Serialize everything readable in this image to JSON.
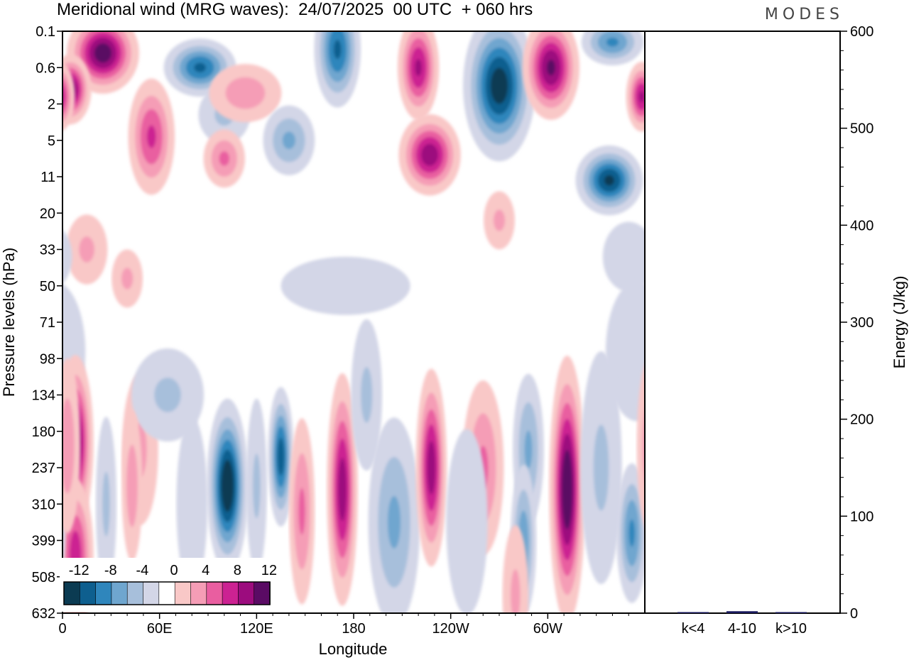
{
  "header": {
    "title": "Meridional wind (MRG waves):  24/07/2025  00 UTC  + 060 hrs",
    "logo": "MODES"
  },
  "colors": {
    "neg": [
      "#0b3b52",
      "#0e5f8f",
      "#2f86bc",
      "#6fa6cf",
      "#a7bfdb",
      "#d3d6e7"
    ],
    "pos": [
      "#f9c8c7",
      "#f59db6",
      "#e95ea0",
      "#cc2292",
      "#9c0c7e",
      "#5a0b64"
    ],
    "zero": "#ffffff"
  },
  "chart_data": [
    {
      "type": "heatmap",
      "name": "hovmoller-longitude-pressure",
      "title": "Meridional wind (MRG waves)",
      "xlabel": "Longitude",
      "ylabel": "Pressure levels (hPa)",
      "x_ticks": [
        "0",
        "60E",
        "120E",
        "180",
        "120W",
        "60W"
      ],
      "x_tick_degrees": [
        0,
        60,
        120,
        180,
        240,
        300
      ],
      "x_range": [
        0,
        360
      ],
      "y_ticks": [
        "0.1",
        "0.6",
        "2",
        "5",
        "11",
        "20",
        "33",
        "50",
        "71",
        "98",
        "134",
        "180",
        "237",
        "310",
        "399",
        "508",
        "632"
      ],
      "colorbar": {
        "levels": [
          -12,
          -10,
          -8,
          -6,
          -4,
          -2,
          2,
          4,
          6,
          8,
          10,
          12
        ],
        "labels": [
          "-12",
          "-8",
          "-4",
          "0",
          "4",
          "8",
          "12"
        ]
      },
      "features": [
        {
          "lon": 25,
          "level": 0.6,
          "value": 13,
          "wlon": 14,
          "wlev": 0.7
        },
        {
          "lon": 5,
          "level": 1.6,
          "value": 12,
          "wlon": 8,
          "wlev": 0.6
        },
        {
          "lon": 55,
          "level": 2.9,
          "value": 8,
          "wlon": 9,
          "wlev": 1.0
        },
        {
          "lon": 85,
          "level": 1.0,
          "value": -10,
          "wlon": 14,
          "wlev": 0.5
        },
        {
          "lon": 100,
          "level": 2.3,
          "value": -4,
          "wlon": 10,
          "wlev": 0.5
        },
        {
          "lon": 113,
          "level": 1.7,
          "value": 5,
          "wlon": 14,
          "wlev": 0.5
        },
        {
          "lon": 100,
          "level": 3.5,
          "value": 6,
          "wlon": 8,
          "wlev": 0.5
        },
        {
          "lon": 140,
          "level": 3.0,
          "value": -6,
          "wlon": 10,
          "wlev": 0.6
        },
        {
          "lon": 170,
          "level": 0.5,
          "value": -10,
          "wlon": 9,
          "wlev": 1.0
        },
        {
          "lon": 220,
          "level": 1.0,
          "value": 10,
          "wlon": 8,
          "wlev": 0.9
        },
        {
          "lon": 227,
          "level": 3.4,
          "value": 11,
          "wlon": 12,
          "wlev": 0.7
        },
        {
          "lon": 270,
          "level": 1.5,
          "value": -13,
          "wlon": 14,
          "wlev": 1.3
        },
        {
          "lon": 302,
          "level": 1.0,
          "value": 12,
          "wlon": 11,
          "wlev": 0.9
        },
        {
          "lon": 340,
          "level": 0.3,
          "value": -8,
          "wlon": 12,
          "wlev": 0.4
        },
        {
          "lon": 338,
          "level": 4.1,
          "value": -12,
          "wlon": 13,
          "wlev": 0.6
        },
        {
          "lon": 358,
          "level": 1.8,
          "value": 10,
          "wlon": 6,
          "wlev": 0.6
        },
        {
          "lon": 15,
          "level": 6.0,
          "value": 4,
          "wlon": 8,
          "wlev": 0.6
        },
        {
          "lon": 400,
          "level": 6.8,
          "value": 4,
          "wlon": 6,
          "wlev": 0.5
        },
        {
          "lon": 175,
          "level": 7.0,
          "value": -3,
          "wlon": 25,
          "wlev": 0.5
        },
        {
          "lon": 350,
          "level": 6.2,
          "value": -3,
          "wlon": 10,
          "wlev": 0.6
        },
        {
          "lon": 270,
          "level": 5.2,
          "value": 4,
          "wlon": 6,
          "wlev": 0.5
        },
        {
          "lon": 355,
          "level": 8.8,
          "value": -3,
          "wlon": 12,
          "wlev": 1.2
        },
        {
          "lon": 8,
          "level": 11.3,
          "value": 12,
          "wlon": 7,
          "wlev": 1.5
        },
        {
          "lon": 8,
          "level": 14.4,
          "value": 9,
          "wlon": 7,
          "wlev": 1.3
        },
        {
          "lon": 48,
          "level": 11.5,
          "value": 4,
          "wlon": 7,
          "wlev": 1.3
        },
        {
          "lon": 65,
          "level": 10.0,
          "value": -4,
          "wlon": 14,
          "wlev": 0.8
        },
        {
          "lon": 102,
          "level": 12.5,
          "value": -14,
          "wlon": 8,
          "wlev": 1.5
        },
        {
          "lon": 135,
          "level": 11.7,
          "value": -11,
          "wlon": 5,
          "wlev": 1.2
        },
        {
          "lon": 120,
          "level": 12.5,
          "value": -4,
          "wlon": 4,
          "wlev": 1.5
        },
        {
          "lon": 148,
          "level": 13.2,
          "value": 6,
          "wlon": 5,
          "wlev": 1.6
        },
        {
          "lon": 173,
          "level": 12.6,
          "value": 11,
          "wlon": 6,
          "wlev": 2.0
        },
        {
          "lon": 188,
          "level": 10.0,
          "value": -4,
          "wlon": 6,
          "wlev": 1.3
        },
        {
          "lon": 205,
          "level": 13.5,
          "value": -6,
          "wlon": 10,
          "wlev": 1.8
        },
        {
          "lon": 228,
          "level": 12.0,
          "value": 11,
          "wlon": 6,
          "wlev": 1.7
        },
        {
          "lon": 260,
          "level": 12.0,
          "value": 6,
          "wlon": 8,
          "wlev": 1.5
        },
        {
          "lon": 250,
          "level": 13.5,
          "value": -3,
          "wlon": 8,
          "wlev": 1.6
        },
        {
          "lon": 288,
          "level": 11.5,
          "value": -6,
          "wlon": 6,
          "wlev": 1.3
        },
        {
          "lon": 285,
          "level": 14.0,
          "value": -7,
          "wlon": 5,
          "wlev": 1.3
        },
        {
          "lon": 312,
          "level": 12.6,
          "value": 14,
          "wlon": 7,
          "wlev": 2.3
        },
        {
          "lon": 333,
          "level": 12.0,
          "value": -4,
          "wlon": 8,
          "wlev": 2.0
        },
        {
          "lon": 352,
          "level": 13.8,
          "value": -8,
          "wlon": 6,
          "wlev": 1.2
        },
        {
          "lon": 363,
          "level": 11.4,
          "value": 5,
          "wlon": 5,
          "wlev": 1.5
        },
        {
          "lon": 80,
          "level": 13.0,
          "value": -3,
          "wlon": 6,
          "wlev": 1.5
        },
        {
          "lon": 27,
          "level": 13.0,
          "value": -4,
          "wlon": 4,
          "wlev": 1.5
        },
        {
          "lon": 43,
          "level": 12.5,
          "value": 5,
          "wlon": 4,
          "wlev": 1.3
        },
        {
          "lon": 280,
          "level": 15.5,
          "value": 4,
          "wlon": 5,
          "wlev": 1.2
        }
      ]
    },
    {
      "type": "bar",
      "name": "energy-by-wavenumber",
      "categories": [
        "k<4",
        "4-10",
        "k>10"
      ],
      "values": [
        1,
        2,
        0.5
      ],
      "ylabel": "Energy (J/kg)",
      "ylim": [
        0,
        600
      ],
      "y_ticks": [
        "0",
        "100",
        "200",
        "300",
        "400",
        "500",
        "600"
      ],
      "bar_color": "#1a1a5e"
    }
  ]
}
